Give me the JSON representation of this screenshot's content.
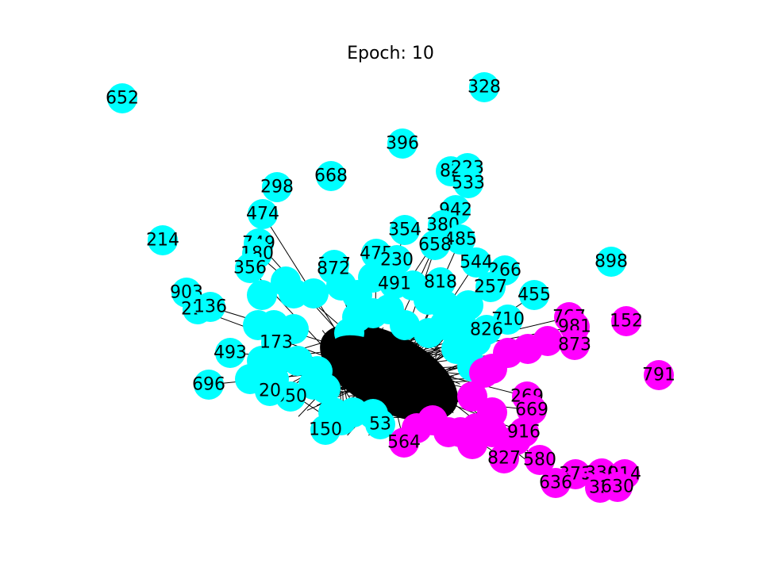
{
  "title": "Epoch: 10",
  "colors": {
    "cluster_a": "#00ffff",
    "cluster_b": "#ff00ff",
    "edge": "#000000",
    "label": "#000000"
  },
  "nodes": [
    {
      "label": "652",
      "group": "a"
    },
    {
      "label": "328",
      "group": "a"
    },
    {
      "label": "396",
      "group": "a"
    },
    {
      "label": "82",
      "group": "a"
    },
    {
      "label": "223",
      "group": "a"
    },
    {
      "label": "533",
      "group": "a"
    },
    {
      "label": "668",
      "group": "a"
    },
    {
      "label": "298",
      "group": "a"
    },
    {
      "label": "474",
      "group": "a"
    },
    {
      "label": "942",
      "group": "a"
    },
    {
      "label": "380",
      "group": "a"
    },
    {
      "label": "354",
      "group": "a"
    },
    {
      "label": "485",
      "group": "a"
    },
    {
      "label": "658",
      "group": "a"
    },
    {
      "label": "214",
      "group": "a"
    },
    {
      "label": "749",
      "group": "a"
    },
    {
      "label": "180",
      "group": "a"
    },
    {
      "label": "475",
      "group": "a"
    },
    {
      "label": "230",
      "group": "a"
    },
    {
      "label": "898",
      "group": "a"
    },
    {
      "label": "544",
      "group": "a"
    },
    {
      "label": "356",
      "group": "a"
    },
    {
      "label": "377",
      "group": "a"
    },
    {
      "label": "872",
      "group": "a"
    },
    {
      "label": "266",
      "group": "a"
    },
    {
      "label": "455",
      "group": "a"
    },
    {
      "label": "903",
      "group": "a"
    },
    {
      "label": "212",
      "group": "a"
    },
    {
      "label": "136",
      "group": "a"
    },
    {
      "label": "491",
      "group": "a"
    },
    {
      "label": "818",
      "group": "a"
    },
    {
      "label": "257",
      "group": "a"
    },
    {
      "label": "493",
      "group": "a"
    },
    {
      "label": "696",
      "group": "a"
    },
    {
      "label": "650",
      "group": "a"
    },
    {
      "label": "150",
      "group": "a"
    },
    {
      "label": "710",
      "group": "a"
    },
    {
      "label": "826",
      "group": "a"
    },
    {
      "label": "173",
      "group": "a"
    },
    {
      "label": "20",
      "group": "a"
    },
    {
      "label": "53",
      "group": "a"
    },
    {
      "label": "767",
      "group": "b"
    },
    {
      "label": "981",
      "group": "b"
    },
    {
      "label": "152",
      "group": "b"
    },
    {
      "label": "873",
      "group": "b"
    },
    {
      "label": "791",
      "group": "b"
    },
    {
      "label": "269",
      "group": "b"
    },
    {
      "label": "669",
      "group": "b"
    },
    {
      "label": "916",
      "group": "b"
    },
    {
      "label": "564",
      "group": "b"
    },
    {
      "label": "827",
      "group": "b"
    },
    {
      "label": "580",
      "group": "b"
    },
    {
      "label": "373",
      "group": "b"
    },
    {
      "label": "636",
      "group": "b"
    },
    {
      "label": "330",
      "group": "b"
    },
    {
      "label": "914",
      "group": "b"
    },
    {
      "label": "32",
      "group": "b"
    },
    {
      "label": "630",
      "group": "b"
    }
  ]
}
